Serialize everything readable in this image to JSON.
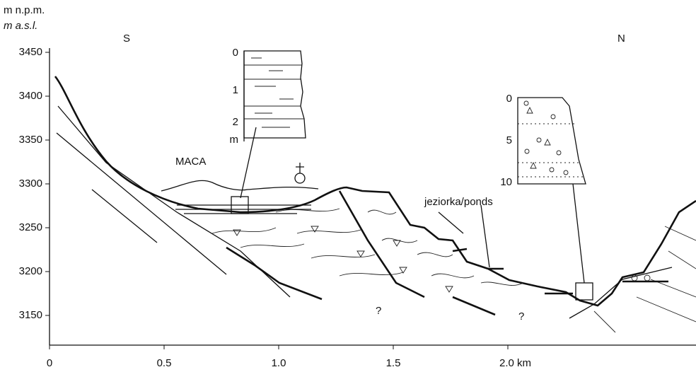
{
  "axis": {
    "unit_pl": "m n.p.m.",
    "unit_en": "m a.s.l.",
    "y_ticks": [
      3450,
      3400,
      3350,
      3300,
      3250,
      3200,
      3150
    ],
    "x_ticks": [
      "0",
      "0.5",
      "1.0",
      "1.5",
      "2.0 km"
    ]
  },
  "labels": {
    "south": "S",
    "north": "N",
    "lake": "MACA",
    "ponds": "jeziorka/ponds",
    "unknown_1": "?",
    "unknown_2": "?"
  },
  "inset_left": {
    "scale": [
      "0",
      "1",
      "2"
    ],
    "unit": "m"
  },
  "inset_right": {
    "scale": [
      "0",
      "5",
      "10"
    ]
  }
}
